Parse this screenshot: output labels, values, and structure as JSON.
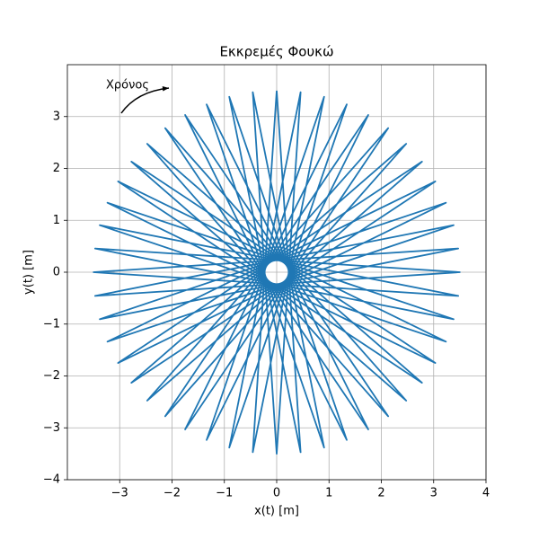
{
  "chart_data": {
    "type": "line",
    "title": "Εκκρεμές Φουκώ",
    "xlabel": "x(t) [m]",
    "ylabel": "y(t) [m]",
    "annotation": "Χρόνος",
    "grid": true,
    "xlim": [
      -4,
      4
    ],
    "ylim": [
      -4,
      4
    ],
    "xticks": [
      {
        "value": -3,
        "label": "−3"
      },
      {
        "value": -2,
        "label": "−2"
      },
      {
        "value": -1,
        "label": "−1"
      },
      0,
      1,
      2,
      3,
      4
    ],
    "yticks": [
      {
        "value": -4,
        "label": "−4"
      },
      {
        "value": -3,
        "label": "−3"
      },
      {
        "value": -2,
        "label": "−2"
      },
      {
        "value": -1,
        "label": "−1"
      },
      0,
      1,
      2,
      3
    ],
    "color": "#1f77b4",
    "x": [
      0,
      0.457,
      -0.906,
      1.339,
      -1.75,
      2.131,
      -2.475,
      2.777,
      -3.031,
      3.234,
      -3.381,
      3.47,
      -3.5,
      3.47,
      -3.381,
      3.234,
      -3.031,
      2.777,
      -2.475,
      2.131,
      -1.75,
      1.339,
      -0.906,
      0.457,
      0,
      -0.457,
      0.906,
      -1.339,
      1.75,
      -2.131,
      2.475,
      -2.777,
      3.031,
      -3.234,
      3.381,
      -3.47,
      3.5,
      -3.47,
      3.381,
      -3.234,
      3.031,
      -2.777,
      2.475,
      -2.131,
      1.75,
      -1.339,
      0.906,
      -0.457,
      0
    ],
    "values": [
      3.5,
      -3.47,
      3.381,
      -3.234,
      3.031,
      -2.777,
      2.475,
      -2.131,
      1.75,
      -1.339,
      0.906,
      -0.457,
      0,
      0.457,
      -0.906,
      1.339,
      -1.75,
      2.131,
      -2.475,
      2.777,
      -3.031,
      3.234,
      -3.381,
      3.47,
      -3.5,
      3.47,
      -3.381,
      3.234,
      -3.031,
      2.777,
      -2.475,
      2.131,
      -1.75,
      1.339,
      -0.906,
      0.457,
      0,
      -0.457,
      0.906,
      -1.339,
      1.75,
      -2.131,
      2.475,
      -2.777,
      3.031,
      -3.234,
      3.381,
      -3.47,
      3.5
    ]
  }
}
